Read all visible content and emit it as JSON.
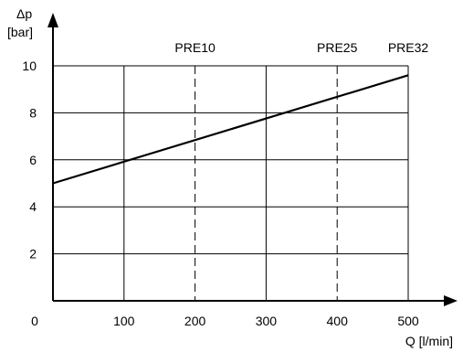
{
  "chart_data": {
    "type": "line",
    "ylabel_symbol": "Δp",
    "ylabel_unit": "[bar]",
    "xlabel": "Q [l/min]",
    "xlim": [
      0,
      500
    ],
    "ylim": [
      0,
      10.8
    ],
    "x_ticks": [
      "0",
      "100",
      "200",
      "300",
      "400",
      "500"
    ],
    "y_ticks": [
      "2",
      "4",
      "6",
      "8",
      "10"
    ],
    "grid": true,
    "series": [
      {
        "x": [
          0,
          500
        ],
        "values": [
          5.0,
          9.6
        ]
      }
    ],
    "markers": [
      {
        "label": "PRE10",
        "x": 200,
        "dashed": true
      },
      {
        "label": "PRE25",
        "x": 400,
        "dashed": true
      },
      {
        "label": "PRE32",
        "x": 500,
        "dashed": false
      }
    ],
    "colors": {
      "line": "#000000",
      "grid": "#000000"
    }
  }
}
